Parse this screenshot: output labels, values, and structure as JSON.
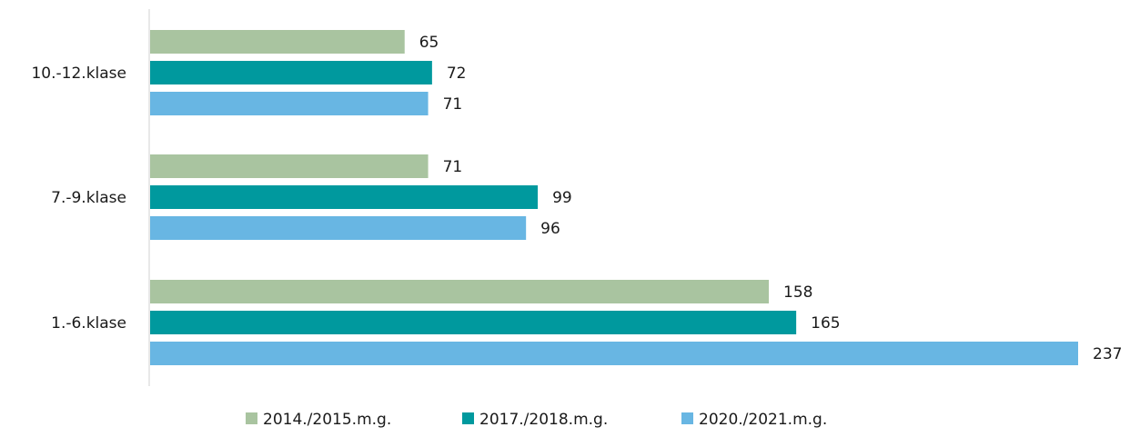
{
  "chart_data": {
    "type": "bar",
    "orientation": "horizontal",
    "categories": [
      "10.-12.klase",
      "7.-9.klase",
      "1.-6.klase"
    ],
    "series": [
      {
        "name": "2014./2015.m.g.",
        "color": "#a9c4a0",
        "values": [
          65,
          71,
          158
        ]
      },
      {
        "name": "2017./2018.m.g.",
        "color": "#00999e",
        "values": [
          72,
          99,
          165
        ]
      },
      {
        "name": "2020./2021.m.g.",
        "color": "#68b6e3",
        "values": [
          71,
          96,
          237
        ]
      }
    ],
    "title": "",
    "xlabel": "",
    "ylabel": "",
    "xlim": [
      0,
      237
    ],
    "grid": false,
    "legend_position": "bottom"
  }
}
